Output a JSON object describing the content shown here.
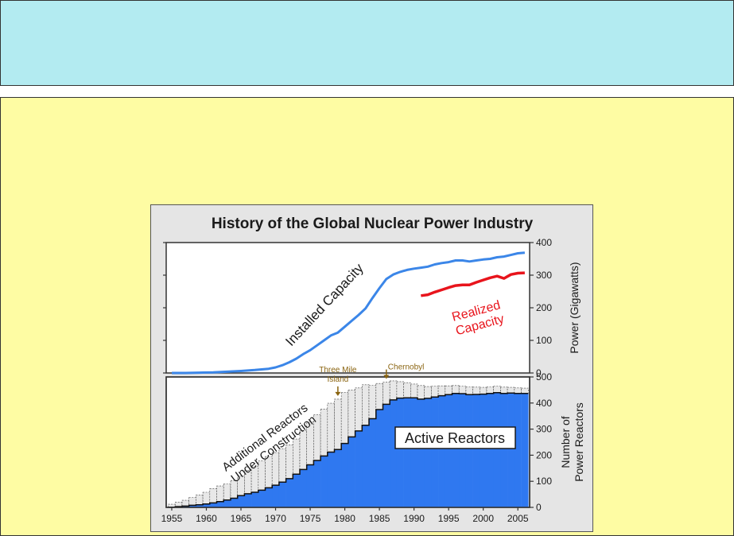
{
  "chart_data": [
    {
      "type": "line",
      "title": "History of the Global Nuclear Power Industry",
      "ylabel": "Power (Gigawatts)",
      "ylim": [
        0,
        400
      ],
      "yticks": [
        "0",
        "100",
        "200",
        "300",
        "400"
      ],
      "grid": false,
      "series": [
        {
          "name": "Installed Capacity",
          "color": "#3b86e8",
          "x": [
            1955,
            1957,
            1959,
            1961,
            1963,
            1965,
            1967,
            1969,
            1970,
            1971,
            1972,
            1973,
            1974,
            1975,
            1976,
            1977,
            1978,
            1979,
            1980,
            1981,
            1982,
            1983,
            1984,
            1985,
            1986,
            1987,
            1988,
            1989,
            1990,
            1991,
            1992,
            1993,
            1994,
            1995,
            1996,
            1997,
            1998,
            1999,
            2000,
            2001,
            2002,
            2003,
            2004,
            2005,
            2006
          ],
          "y": [
            0,
            0,
            1,
            2,
            4,
            6,
            9,
            13,
            17,
            24,
            33,
            44,
            58,
            70,
            85,
            100,
            115,
            124,
            142,
            160,
            178,
            198,
            230,
            260,
            288,
            302,
            310,
            316,
            320,
            323,
            326,
            333,
            337,
            340,
            345,
            345,
            342,
            345,
            348,
            350,
            355,
            357,
            362,
            367,
            369
          ]
        },
        {
          "name": "Realized Capacity",
          "color": "#e8141c",
          "x": [
            1991,
            1992,
            1993,
            1994,
            1995,
            1996,
            1997,
            1998,
            1999,
            2000,
            2001,
            2002,
            2003,
            2004,
            2005,
            2006
          ],
          "y": [
            237,
            240,
            248,
            255,
            262,
            268,
            270,
            270,
            278,
            285,
            292,
            297,
            290,
            302,
            306,
            307
          ]
        }
      ]
    },
    {
      "type": "bar",
      "xlabel": "",
      "ylabel": "Number of Power Reactors",
      "ylim": [
        0,
        500
      ],
      "yticks": [
        "0",
        "100",
        "200",
        "300",
        "400",
        "500"
      ],
      "xticks": [
        "1955",
        "1960",
        "1965",
        "1970",
        "1975",
        "1980",
        "1985",
        "1990",
        "1995",
        "2000",
        "2005"
      ],
      "grid": false,
      "stacked": true,
      "categories": [
        1955,
        1956,
        1957,
        1958,
        1959,
        1960,
        1961,
        1962,
        1963,
        1964,
        1965,
        1966,
        1967,
        1968,
        1969,
        1970,
        1971,
        1972,
        1973,
        1974,
        1975,
        1976,
        1977,
        1978,
        1979,
        1980,
        1981,
        1982,
        1983,
        1984,
        1985,
        1986,
        1987,
        1988,
        1989,
        1990,
        1991,
        1992,
        1993,
        1994,
        1995,
        1996,
        1997,
        1998,
        1999,
        2000,
        2001,
        2002,
        2003,
        2004,
        2005,
        2006
      ],
      "series": [
        {
          "name": "Active Reactors",
          "color": "#2f78f0",
          "values": [
            1,
            3,
            5,
            8,
            10,
            13,
            17,
            22,
            28,
            35,
            45,
            52,
            58,
            66,
            75,
            85,
            97,
            110,
            127,
            145,
            163,
            180,
            197,
            212,
            222,
            245,
            270,
            293,
            315,
            340,
            375,
            395,
            412,
            419,
            420,
            420,
            415,
            418,
            423,
            428,
            432,
            437,
            436,
            432,
            433,
            434,
            437,
            440,
            437,
            438,
            437,
            437
          ]
        },
        {
          "name": "Additional Reactors Under Construction",
          "color": "#e8e8e8",
          "values": [
            11,
            17,
            22,
            30,
            38,
            45,
            55,
            60,
            62,
            68,
            75,
            90,
            100,
            112,
            120,
            125,
            128,
            130,
            135,
            150,
            165,
            175,
            180,
            187,
            193,
            195,
            180,
            165,
            155,
            128,
            100,
            85,
            73,
            63,
            58,
            53,
            52,
            45,
            42,
            38,
            34,
            30,
            29,
            30,
            28,
            26,
            25,
            25,
            24,
            22,
            21,
            20
          ]
        }
      ],
      "annotations": [
        {
          "text": "Three Mile Island",
          "x": 1979
        },
        {
          "text": "Chernobyl",
          "x": 1986
        }
      ]
    }
  ]
}
